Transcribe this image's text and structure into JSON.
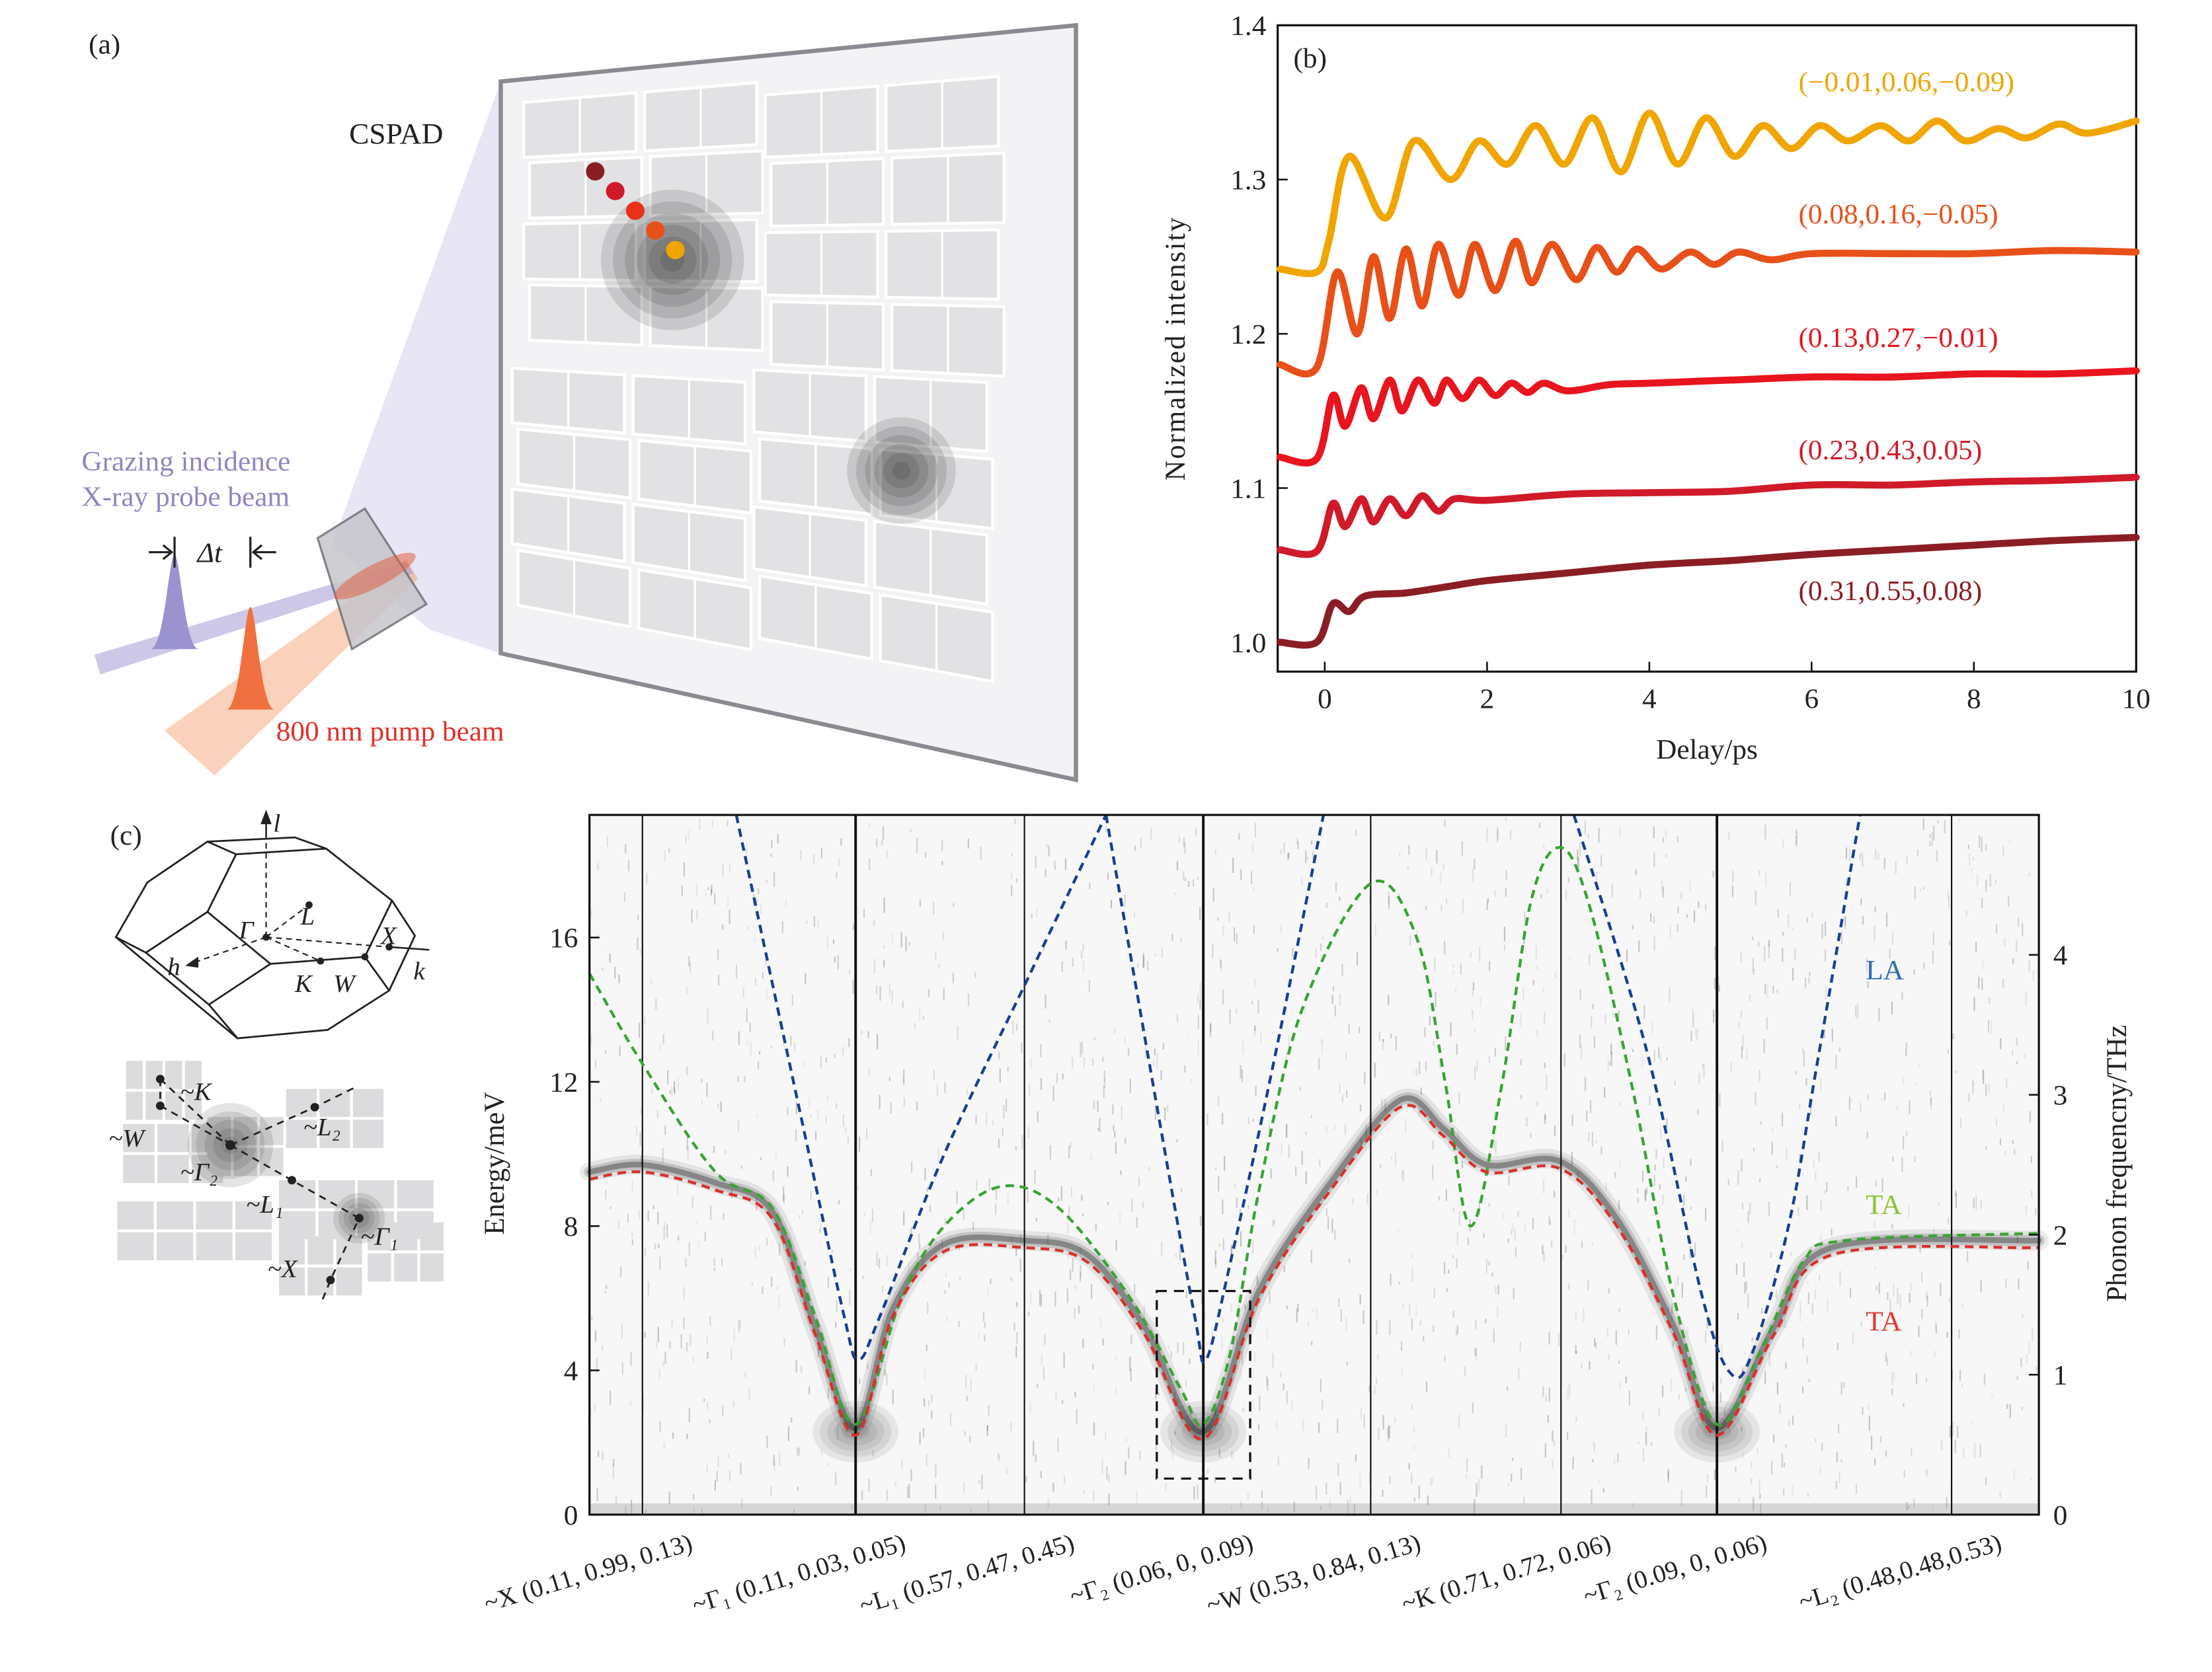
{
  "panel_a": {
    "label": "(a)",
    "detector_label": "CSPAD",
    "probe_label_line1": "Grazing incidence",
    "probe_label_line2": "X-ray probe beam",
    "delay_label": "Δt",
    "pump_label": "800 nm pump beam",
    "colors": {
      "probe": "#8f86c0",
      "pump": "#e0302a"
    },
    "marker_colors": [
      "#8b1e24",
      "#d01a2a",
      "#e8301a",
      "#e8501a",
      "#f0a500"
    ]
  },
  "panel_c_inset": {
    "label": "(c)",
    "bz_labels": {
      "l": "l",
      "L": "L",
      "Gamma": "Γ",
      "X": "X",
      "h": "h",
      "K": "K",
      "W": "W",
      "k": "k"
    },
    "pattern_labels": {
      "K": "~K",
      "W": "~W",
      "L2": "~L₂",
      "Gamma2": "~Γ₂",
      "L1": "~L₁",
      "Gamma1": "~Γ₁",
      "X": "~X"
    }
  },
  "chart_data": [
    {
      "panel_label": "(b)",
      "type": "line",
      "xlabel": "Delay/ps",
      "ylabel": "Normalized intensity",
      "xlim": [
        -0.58,
        10
      ],
      "ylim": [
        0.981,
        1.4
      ],
      "xticks": [
        "0",
        "2",
        "4",
        "6",
        "8",
        "10"
      ],
      "yticks": [
        "1.0",
        "1.1",
        "1.2",
        "1.3",
        "1.4"
      ],
      "grid": false,
      "series": [
        {
          "name": "(−0.01,0.06,−0.09)",
          "color": "#f0a500",
          "points": [
            [
              -0.55,
              1.242
            ],
            [
              -0.1,
              1.24
            ],
            [
              0.05,
              1.26
            ],
            [
              0.3,
              1.315
            ],
            [
              0.75,
              1.275
            ],
            [
              1.1,
              1.325
            ],
            [
              1.55,
              1.3
            ],
            [
              1.9,
              1.325
            ],
            [
              2.25,
              1.31
            ],
            [
              2.6,
              1.335
            ],
            [
              2.95,
              1.31
            ],
            [
              3.3,
              1.34
            ],
            [
              3.65,
              1.305
            ],
            [
              4.0,
              1.343
            ],
            [
              4.35,
              1.31
            ],
            [
              4.7,
              1.34
            ],
            [
              5.05,
              1.315
            ],
            [
              5.4,
              1.335
            ],
            [
              5.75,
              1.32
            ],
            [
              6.1,
              1.335
            ],
            [
              6.45,
              1.325
            ],
            [
              6.85,
              1.335
            ],
            [
              7.2,
              1.325
            ],
            [
              7.55,
              1.338
            ],
            [
              7.9,
              1.325
            ],
            [
              8.3,
              1.333
            ],
            [
              8.65,
              1.327
            ],
            [
              9.05,
              1.336
            ],
            [
              9.4,
              1.33
            ],
            [
              10,
              1.338
            ]
          ]
        },
        {
          "name": "(0.08,0.16,−0.05)",
          "color": "#e8501a",
          "points": [
            [
              -0.55,
              1.18
            ],
            [
              -0.1,
              1.178
            ],
            [
              0.15,
              1.24
            ],
            [
              0.4,
              1.2
            ],
            [
              0.6,
              1.25
            ],
            [
              0.8,
              1.21
            ],
            [
              1.0,
              1.255
            ],
            [
              1.2,
              1.218
            ],
            [
              1.4,
              1.258
            ],
            [
              1.65,
              1.225
            ],
            [
              1.85,
              1.258
            ],
            [
              2.1,
              1.228
            ],
            [
              2.35,
              1.26
            ],
            [
              2.55,
              1.233
            ],
            [
              2.8,
              1.258
            ],
            [
              3.1,
              1.235
            ],
            [
              3.35,
              1.256
            ],
            [
              3.6,
              1.24
            ],
            [
              3.85,
              1.255
            ],
            [
              4.15,
              1.242
            ],
            [
              4.5,
              1.253
            ],
            [
              4.8,
              1.245
            ],
            [
              5.1,
              1.253
            ],
            [
              5.5,
              1.248
            ],
            [
              6,
              1.252
            ],
            [
              7,
              1.252
            ],
            [
              8,
              1.252
            ],
            [
              9,
              1.254
            ],
            [
              10,
              1.253
            ]
          ]
        },
        {
          "name": "(0.13,0.27,−0.01)",
          "color": "#e8141e",
          "points": [
            [
              -0.55,
              1.12
            ],
            [
              -0.1,
              1.119
            ],
            [
              0.1,
              1.16
            ],
            [
              0.25,
              1.14
            ],
            [
              0.45,
              1.165
            ],
            [
              0.6,
              1.145
            ],
            [
              0.8,
              1.17
            ],
            [
              0.95,
              1.15
            ],
            [
              1.15,
              1.17
            ],
            [
              1.35,
              1.155
            ],
            [
              1.5,
              1.17
            ],
            [
              1.7,
              1.158
            ],
            [
              1.9,
              1.17
            ],
            [
              2.1,
              1.16
            ],
            [
              2.3,
              1.168
            ],
            [
              2.5,
              1.162
            ],
            [
              2.7,
              1.168
            ],
            [
              3.0,
              1.163
            ],
            [
              3.5,
              1.167
            ],
            [
              4,
              1.168
            ],
            [
              5,
              1.17
            ],
            [
              6,
              1.172
            ],
            [
              7,
              1.172
            ],
            [
              8,
              1.174
            ],
            [
              9,
              1.174
            ],
            [
              10,
              1.176
            ]
          ]
        },
        {
          "name": "(0.23,0.43,0.05)",
          "color": "#d01a2a",
          "points": [
            [
              -0.55,
              1.06
            ],
            [
              -0.1,
              1.059
            ],
            [
              0.1,
              1.09
            ],
            [
              0.25,
              1.075
            ],
            [
              0.45,
              1.093
            ],
            [
              0.6,
              1.078
            ],
            [
              0.8,
              1.093
            ],
            [
              1.0,
              1.082
            ],
            [
              1.2,
              1.095
            ],
            [
              1.4,
              1.085
            ],
            [
              1.6,
              1.093
            ],
            [
              2,
              1.092
            ],
            [
              3,
              1.096
            ],
            [
              4,
              1.097
            ],
            [
              5,
              1.098
            ],
            [
              6,
              1.102
            ],
            [
              7,
              1.102
            ],
            [
              8,
              1.104
            ],
            [
              9,
              1.105
            ],
            [
              10,
              1.107
            ]
          ]
        },
        {
          "name": "(0.31,0.55,0.08)",
          "color": "#8b1e24",
          "points": [
            [
              -0.55,
              1.0
            ],
            [
              -0.1,
              1.0
            ],
            [
              0.1,
              1.025
            ],
            [
              0.3,
              1.02
            ],
            [
              0.5,
              1.03
            ],
            [
              1,
              1.032
            ],
            [
              1.5,
              1.036
            ],
            [
              2,
              1.04
            ],
            [
              3,
              1.045
            ],
            [
              4,
              1.05
            ],
            [
              5,
              1.053
            ],
            [
              6,
              1.057
            ],
            [
              7,
              1.06
            ],
            [
              8,
              1.063
            ],
            [
              9,
              1.066
            ],
            [
              10,
              1.068
            ]
          ]
        }
      ]
    },
    {
      "type": "line",
      "xlabel": "",
      "ylabel": "Energy/meV",
      "ylabel_right": "Phonon frequencny/THz",
      "ylim": [
        0,
        19.4
      ],
      "ylim_right_THz": [
        0,
        5
      ],
      "yticks": [
        "0",
        "4",
        "8",
        "12",
        "16"
      ],
      "yticks_right": [
        "0",
        "1",
        "2",
        "3",
        "4"
      ],
      "categories": [
        "~X (0.11, 0.99, 0.13)",
        "~Γ₁ (0.11, 0.03, 0.05)",
        "~L₁ (0.57, 0.47, 0.45)",
        "~Γ₂ (0.06, 0, 0.09)",
        "~W (0.53, 0.84, 0.13)",
        "~K (0.71, 0.72, 0.06)",
        "~Γ₂ (0.09, 0, 0.06)",
        "~L₂ (0.48,0.48,0.53)"
      ],
      "xlim": [
        -0.25,
        7.37
      ],
      "highlight_box": {
        "x": [
          2.74,
          3.28
        ],
        "y": [
          1.0,
          6.2
        ]
      },
      "series": [
        {
          "name": "LA",
          "color": "#1a3f8f",
          "label_color": "#2f6db0",
          "style": "dashed",
          "segments": [
            [
              [
                0.44,
                19.4
              ],
              [
                0.745,
                11
              ],
              [
                0.946,
                5.5
              ],
              [
                1.017,
                4.3
              ],
              [
                1.144,
                5.5
              ],
              [
                1.525,
                10
              ],
              [
                2.032,
                15
              ],
              [
                2.456,
                19.4
              ]
            ],
            [
              [
                2.456,
                19.4
              ],
              [
                2.752,
                11
              ],
              [
                2.952,
                5.5
              ],
              [
                3.017,
                4.3
              ],
              [
                3.162,
                7
              ],
              [
                3.419,
                12.5
              ],
              [
                3.718,
                19.4
              ]
            ],
            [
              [
                5.083,
                19.4
              ],
              [
                5.541,
                13
              ],
              [
                5.908,
                6
              ],
              [
                6.061,
                3.9
              ],
              [
                6.152,
                4.5
              ],
              [
                6.305,
                8
              ],
              [
                6.427,
                12.5
              ],
              [
                6.61,
                19.4
              ]
            ]
          ]
        },
        {
          "name": "TA",
          "color": "#3aa335",
          "label_color": "#8cc43a",
          "style": "dashed",
          "segments": [
            [
              [
                -0.248,
                15
              ],
              [
                0,
                12.5
              ],
              [
                0.342,
                9.5
              ],
              [
                0.61,
                8.5
              ],
              [
                0.81,
                5.5
              ],
              [
                1.0,
                2.5
              ],
              [
                1.271,
                6
              ],
              [
                1.525,
                8
              ],
              [
                1.864,
                9.1
              ],
              [
                2.192,
                8.5
              ],
              [
                2.592,
                6
              ],
              [
                2.872,
                3.5
              ],
              [
                3.0,
                2.5
              ],
              [
                3.162,
                4.5
              ],
              [
                3.333,
                9
              ],
              [
                3.59,
                14
              ],
              [
                4.0,
                17.5
              ],
              [
                4.241,
                16
              ],
              [
                4.391,
                12
              ],
              [
                4.526,
                8
              ],
              [
                4.692,
                12
              ],
              [
                4.842,
                17
              ],
              [
                4.992,
                18.5
              ],
              [
                5.174,
                17
              ],
              [
                5.45,
                12
              ],
              [
                5.725,
                6
              ],
              [
                6.0,
                2.5
              ],
              [
                6.183,
                4.5
              ],
              [
                6.366,
                7
              ],
              [
                6.549,
                7.6
              ],
              [
                7.372,
                7.8
              ]
            ]
          ]
        },
        {
          "name": "TA",
          "color": "#d9302b",
          "label_color": "#e03a30",
          "style": "dashed",
          "segments": [
            [
              [
                -0.248,
                9.3
              ],
              [
                0,
                9.5
              ],
              [
                0.342,
                9.0
              ],
              [
                0.61,
                8.2
              ],
              [
                0.81,
                5
              ],
              [
                1.0,
                2.2
              ],
              [
                1.22,
                5.5
              ],
              [
                1.525,
                7.3
              ],
              [
                2.0,
                7.4
              ],
              [
                2.352,
                7
              ],
              [
                2.672,
                5
              ],
              [
                3.0,
                2.1
              ],
              [
                3.333,
                6
              ],
              [
                3.761,
                9
              ],
              [
                4.158,
                11.3
              ],
              [
                4.383,
                10.5
              ],
              [
                4.609,
                9.5
              ],
              [
                4.992,
                9.6
              ],
              [
                5.358,
                8
              ],
              [
                5.725,
                5
              ],
              [
                6.0,
                2.2
              ],
              [
                6.244,
                5
              ],
              [
                6.488,
                7.2
              ],
              [
                7.372,
                7.4
              ]
            ]
          ]
        }
      ]
    }
  ]
}
